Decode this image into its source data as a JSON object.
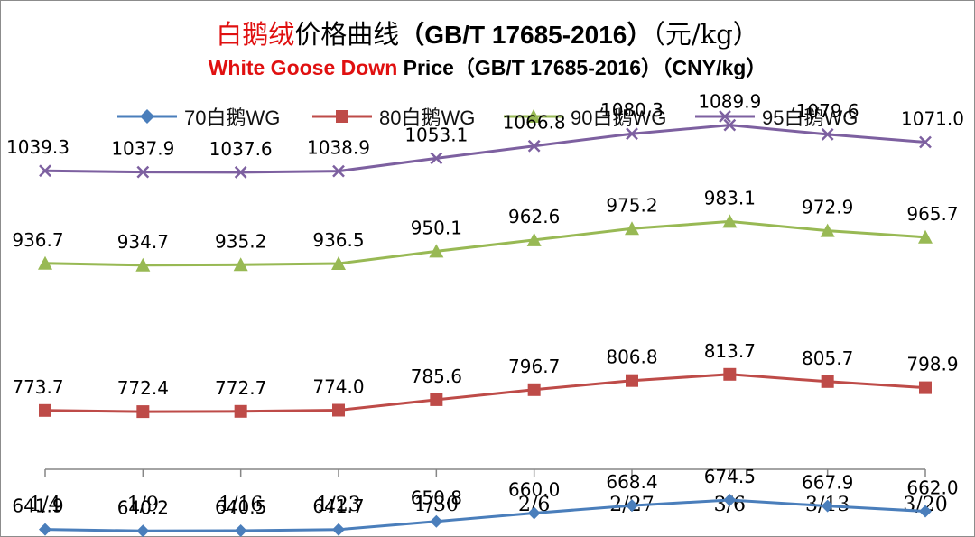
{
  "chart_data": {
    "type": "line",
    "title_cn": {
      "red": "白鹅绒",
      "black": "价格曲线",
      "standard": "（GB/T 17685-2016）",
      "unit": "（元/kg）"
    },
    "title_en": {
      "red": "White Goose Down",
      "black": " Price（GB/T 17685-2016）（CNY/kg）"
    },
    "categories": [
      "1/4",
      "1/9",
      "1/16",
      "1/23",
      "1/30",
      "2/6",
      "2/27",
      "3/6",
      "3/13",
      "3/20"
    ],
    "series": [
      {
        "name": "70白鹅WG",
        "color": "#4a7ebb",
        "marker": "diamond",
        "values": [
          641.9,
          640.2,
          640.5,
          641.7,
          650.8,
          660.0,
          668.4,
          674.5,
          667.9,
          662.0
        ]
      },
      {
        "name": "80白鹅WG",
        "color": "#be4b48",
        "marker": "square",
        "values": [
          773.7,
          772.4,
          772.7,
          774.0,
          785.6,
          796.7,
          806.8,
          813.7,
          805.7,
          798.9
        ]
      },
      {
        "name": "90白鹅WG",
        "color": "#98b954",
        "marker": "triangle",
        "values": [
          936.7,
          934.7,
          935.2,
          936.5,
          950.1,
          962.6,
          975.2,
          983.1,
          972.9,
          965.7
        ]
      },
      {
        "name": "95白鹅WG",
        "color": "#7d60a0",
        "marker": "x",
        "values": [
          1039.3,
          1037.9,
          1037.6,
          1038.9,
          1053.1,
          1066.8,
          1080.3,
          1089.9,
          1079.6,
          1071.0
        ]
      }
    ],
    "legend_position": "top",
    "grid": false,
    "axis_color": "#868686"
  }
}
